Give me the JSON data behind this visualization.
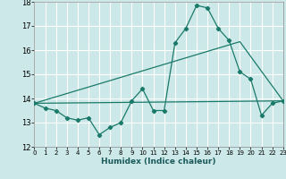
{
  "bg_color": "#cde8e8",
  "grid_color": "#ffffff",
  "line_color": "#1a7a6a",
  "xlabel": "Humidex (Indice chaleur)",
  "xlim": [
    0,
    23
  ],
  "ylim": [
    12,
    18
  ],
  "yticks": [
    12,
    13,
    14,
    15,
    16,
    17,
    18
  ],
  "xticks": [
    0,
    1,
    2,
    3,
    4,
    5,
    6,
    7,
    8,
    9,
    10,
    11,
    12,
    13,
    14,
    15,
    16,
    17,
    18,
    19,
    20,
    21,
    22,
    23
  ],
  "line1_x": [
    0,
    1,
    2,
    3,
    4,
    5,
    6,
    7,
    8,
    9,
    10,
    11,
    12,
    13,
    14,
    15,
    16,
    17,
    18,
    19,
    20,
    21,
    22,
    23
  ],
  "line1_y": [
    13.8,
    13.6,
    13.5,
    13.2,
    13.1,
    13.2,
    12.5,
    12.8,
    13.0,
    13.9,
    14.4,
    13.5,
    13.5,
    16.3,
    16.9,
    17.85,
    17.75,
    16.9,
    16.4,
    15.1,
    14.8,
    13.3,
    13.8,
    13.9
  ],
  "line2_x": [
    0,
    19,
    23
  ],
  "line2_y": [
    13.8,
    16.35,
    13.9
  ],
  "line3_x": [
    0,
    23
  ],
  "line3_y": [
    13.8,
    13.9
  ]
}
